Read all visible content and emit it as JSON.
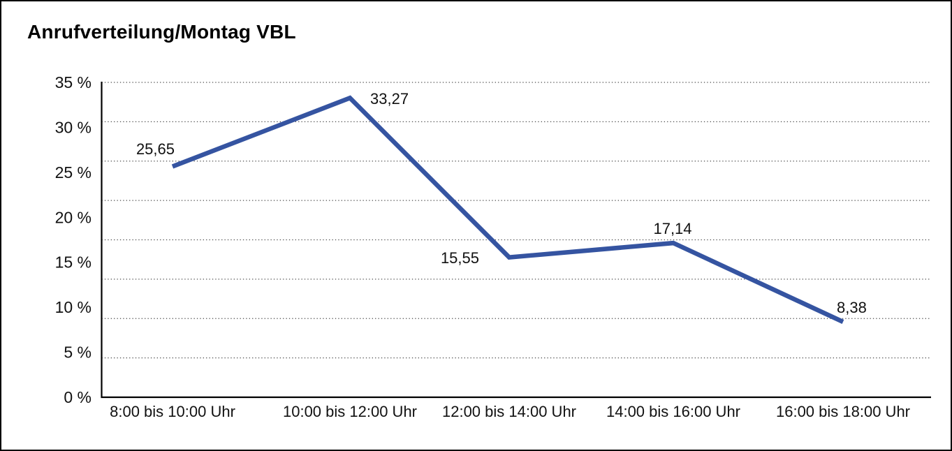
{
  "page": {
    "title": "Anrufverteilung/Montag VBL"
  },
  "chart_data": {
    "type": "line",
    "title": "Anrufverteilung/Montag VBL",
    "categories": [
      "8:00 bis 10:00 Uhr",
      "10:00 bis 12:00 Uhr",
      "12:00 bis 14:00 Uhr",
      "14:00 bis 16:00 Uhr",
      "16:00 bis 18:00 Uhr"
    ],
    "values": [
      25.65,
      33.27,
      15.55,
      17.14,
      8.38
    ],
    "point_labels": [
      "25,65",
      "33,27",
      "15,55",
      "17,14",
      "8,38"
    ],
    "y_ticks": [
      35,
      30,
      25,
      20,
      15,
      10,
      5,
      0
    ],
    "y_tick_labels": [
      "35 %",
      "30 %",
      "25 %",
      "20 %",
      "15 %",
      "10 %",
      "5 %",
      "0 %"
    ],
    "ylim": [
      0,
      35
    ],
    "xlabel": "",
    "ylabel": "",
    "grid": "horizontal-dotted",
    "legend": "none",
    "line_color": "#3554A1"
  },
  "colors": {
    "line": "#3554A1",
    "axis": "#000000",
    "grid_dots": "#4a4a4a",
    "text": "#111111",
    "background": "#ffffff",
    "frame_border": "#000000"
  }
}
